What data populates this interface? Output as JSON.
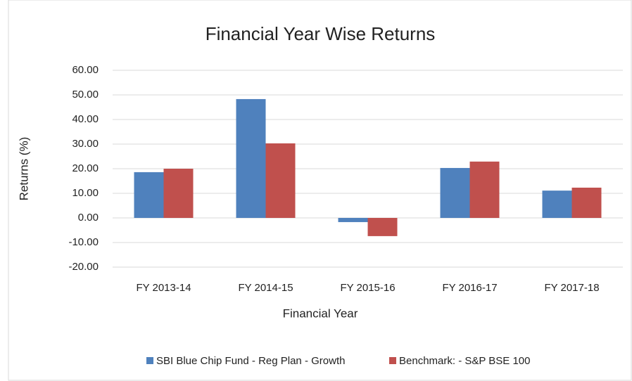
{
  "chart_data": {
    "type": "bar",
    "title": "Financial Year Wise Returns",
    "x_label": "Financial Year",
    "y_label": "Returns (%)",
    "categories": [
      "FY 2013-14",
      "FY 2014-15",
      "FY 2015-16",
      "FY 2016-17",
      "FY 2017-18"
    ],
    "series": [
      {
        "name": "SBI Blue Chip Fund - Reg Plan - Growth",
        "color": "#4f81bd",
        "values": [
          18.6,
          48.3,
          -1.7,
          20.3,
          11.1
        ]
      },
      {
        "name": "Benchmark: - S&P BSE 100",
        "color": "#c0504d",
        "values": [
          20.0,
          30.3,
          -7.4,
          22.9,
          12.3
        ]
      }
    ],
    "ylim": [
      -20,
      60
    ],
    "yticks": [
      {
        "value": -20,
        "label": "-20.00"
      },
      {
        "value": -10,
        "label": "-10.00"
      },
      {
        "value": 0,
        "label": "0.00"
      },
      {
        "value": 10,
        "label": "10.00"
      },
      {
        "value": 20,
        "label": "20.00"
      },
      {
        "value": 30,
        "label": "30.00"
      },
      {
        "value": 40,
        "label": "40.00"
      },
      {
        "value": 50,
        "label": "50.00"
      },
      {
        "value": 60,
        "label": "60.00"
      }
    ],
    "grid": true,
    "legend": "bottom"
  }
}
